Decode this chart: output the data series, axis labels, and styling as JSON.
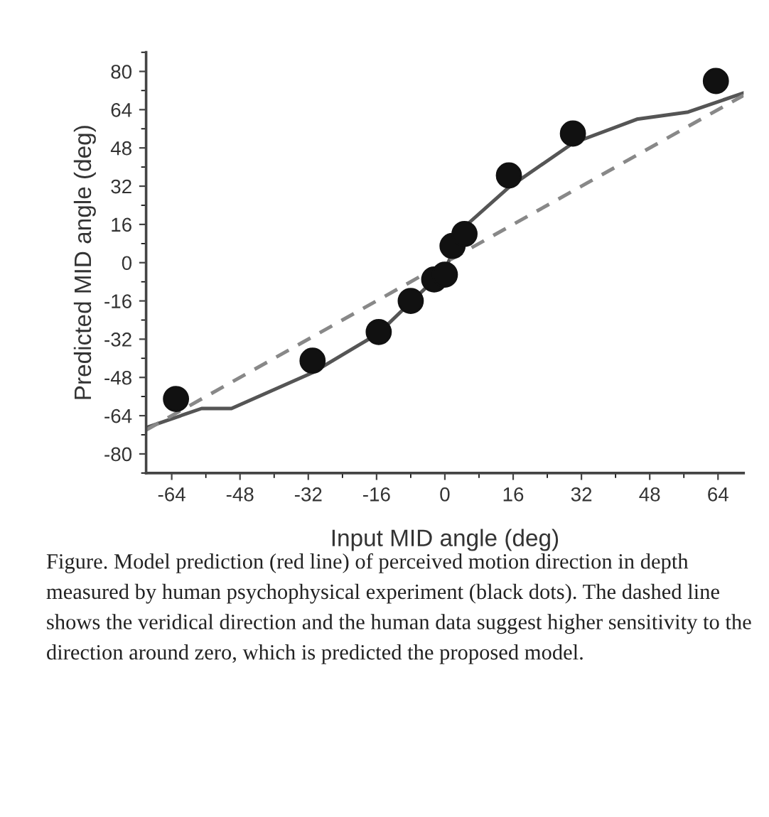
{
  "chart_data": {
    "type": "line",
    "xlabel": "Input MID angle (deg)",
    "ylabel": "Predicted MID angle (deg)",
    "xlim": [
      -70,
      70
    ],
    "ylim": [
      -88,
      88
    ],
    "xticks": [
      -64,
      -48,
      -32,
      -16,
      0,
      16,
      32,
      48,
      64
    ],
    "yticks": [
      -80,
      -64,
      -48,
      -32,
      -16,
      0,
      16,
      32,
      48,
      64,
      80
    ],
    "grid": false,
    "legend": false,
    "series": [
      {
        "color": "#555555",
        "line_style": "solid",
        "marker": "none",
        "x": [
          -70,
          -57,
          -50,
          -31,
          -15.5,
          -8,
          0,
          4.6,
          15,
          30,
          45,
          57,
          70
        ],
        "values": [
          -69,
          -61,
          -61,
          -46,
          -29.5,
          -16.5,
          -3,
          15,
          31.5,
          50,
          60,
          63,
          71
        ]
      },
      {
        "type": "line",
        "color": "#888888",
        "line_style": "dashed",
        "marker": "none",
        "x": [
          -70,
          70
        ],
        "values": [
          -70,
          70
        ]
      },
      {
        "type": "scatter",
        "color": "#111111",
        "marker": "circle",
        "x": [
          -63,
          -31,
          -15.5,
          -8,
          -2.5,
          0,
          1.8,
          4.6,
          15,
          30,
          63.5
        ],
        "values": [
          -57,
          -41,
          -29,
          -16,
          -7,
          -5,
          7,
          12,
          36.5,
          54,
          76
        ]
      }
    ],
    "annotations": [
      "Figure. Model prediction (red line) of perceived motion direction in depth measured by human psychophysical experiment (black dots). The dashed line shows the veridical direction and the human data suggest higher sensitivity to the direction around zero, which is predicted the proposed model."
    ]
  }
}
